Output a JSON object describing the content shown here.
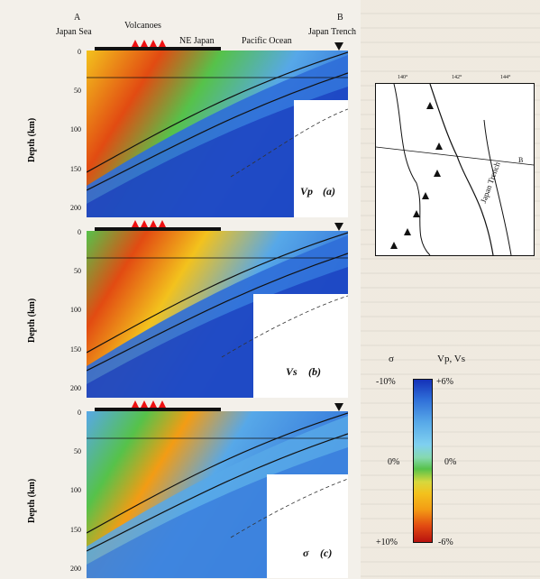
{
  "header": {
    "point_a": "A",
    "point_b": "B",
    "japan_sea": "Japan Sea",
    "volcanoes": "Volcanoes",
    "ne_japan": "NE Japan",
    "pacific_ocean": "Pacific Ocean",
    "japan_trench": "Japan Trench"
  },
  "panels": [
    {
      "label": "Vp",
      "letter": "(a)"
    },
    {
      "label": "Vs",
      "letter": "(b)"
    },
    {
      "label": "σ",
      "letter": "(c)"
    }
  ],
  "axis": {
    "ylabel": "Depth (km)",
    "ticks": [
      "0",
      "50",
      "100",
      "150",
      "200"
    ]
  },
  "map": {
    "lon_ticks": [
      "140°",
      "142°",
      "144°"
    ],
    "point_b": "B",
    "trench_label": "Japan Trench"
  },
  "scale": {
    "sigma_header": "σ",
    "vp_vs_header": "Vp, Vs",
    "sigma_top": "-10%",
    "vpvs_top": "+6%",
    "sigma_mid": "0%",
    "vpvs_mid": "0%",
    "sigma_bottom": "+10%",
    "vpvs_bottom": "-6%"
  },
  "colors": {
    "fast": "#1431b8",
    "neutral": "#56c24a",
    "slow": "#b8120f",
    "volcano": "#e11111"
  }
}
